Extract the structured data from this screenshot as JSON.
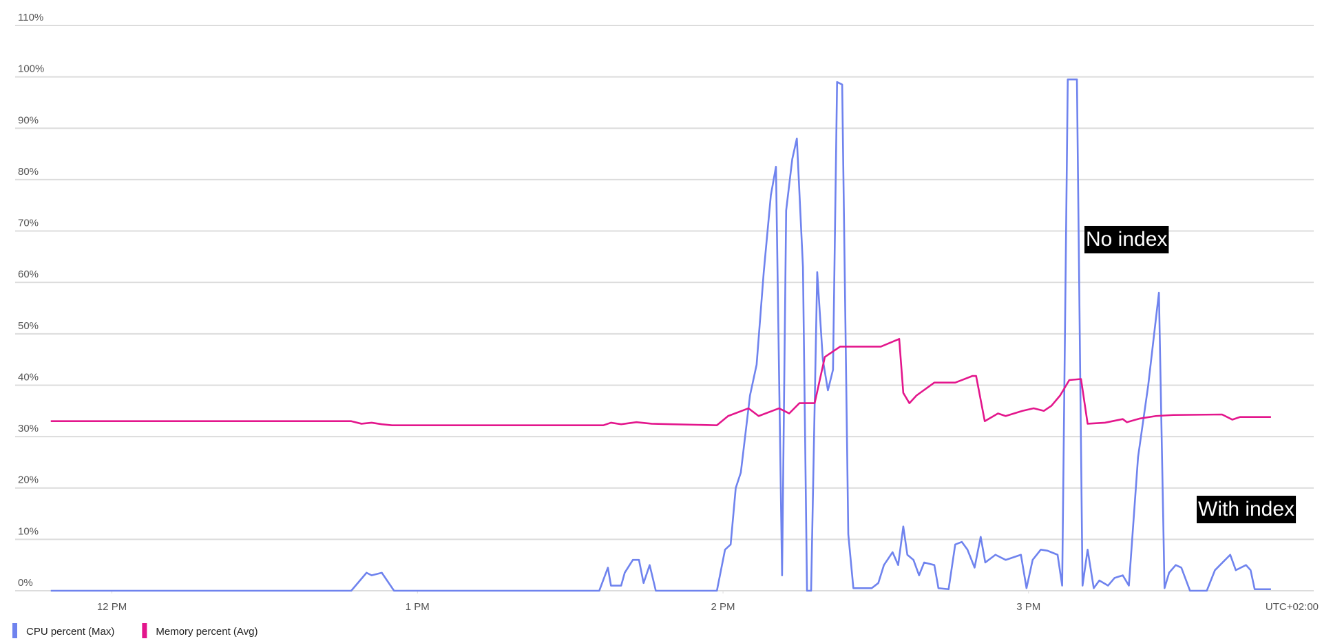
{
  "chart_data": {
    "type": "line",
    "xlim": [
      -19,
      236
    ],
    "xticks": [
      {
        "value": 0,
        "label": "12 PM"
      },
      {
        "value": 60,
        "label": "1 PM"
      },
      {
        "value": 120,
        "label": "2 PM"
      },
      {
        "value": 180,
        "label": "3 PM"
      }
    ],
    "timezone_label": "UTC+02:00",
    "ylim": [
      0,
      110
    ],
    "yticks": [
      {
        "value": 0,
        "label": "0%"
      },
      {
        "value": 10,
        "label": "10%"
      },
      {
        "value": 20,
        "label": "20%"
      },
      {
        "value": 30,
        "label": "30%"
      },
      {
        "value": 40,
        "label": "40%"
      },
      {
        "value": 50,
        "label": "50%"
      },
      {
        "value": 60,
        "label": "60%"
      },
      {
        "value": 70,
        "label": "70%"
      },
      {
        "value": 80,
        "label": "80%"
      },
      {
        "value": 90,
        "label": "90%"
      },
      {
        "value": 100,
        "label": "100%"
      },
      {
        "value": 110,
        "label": "110%"
      }
    ],
    "grid": true,
    "legend": "bottom-left",
    "annotations": [
      "No index",
      "With index"
    ],
    "series": [
      {
        "name": "CPU percent (Max)",
        "color": "#6f83ee",
        "x": [
          -12,
          47,
          50,
          51,
          53,
          55.4,
          95.7,
          97.4,
          98,
          100,
          100.7,
          102.3,
          103.5,
          104.4,
          105.6,
          106.8,
          118.8,
          120.4,
          121.5,
          122.5,
          123.5,
          125.3,
          126.6,
          128,
          129.4,
          130.4,
          131.6,
          132.4,
          133.6,
          134.5,
          135.7,
          136.5,
          137.3,
          138.5,
          139.6,
          140.6,
          141.6,
          142.4,
          143.4,
          144.6,
          145.6,
          149.2,
          150.5,
          151.6,
          153.3,
          154.4,
          155.4,
          156.2,
          157.4,
          158.5,
          159.5,
          161.5,
          162.3,
          164.3,
          165.6,
          166.9,
          168,
          169.4,
          170.6,
          171.5,
          173.5,
          175.5,
          177,
          178.5,
          179.6,
          180.8,
          182.4,
          183.7,
          185.7,
          186.6,
          187.7,
          189.5,
          190.6,
          191.6,
          192.8,
          193.9,
          195.6,
          196.9,
          198.5,
          199.7,
          201.5,
          203.5,
          205.6,
          206.7,
          207.6,
          208.9,
          210,
          211.7,
          215,
          216.6,
          219.6,
          220.7,
          222.7,
          223.6,
          224.4,
          227.6
        ],
        "values": [
          0,
          0,
          3.5,
          3,
          3.5,
          0,
          0,
          4.5,
          1,
          1,
          3.5,
          6,
          6,
          1.5,
          5,
          0,
          0,
          8,
          9,
          20,
          23,
          38,
          44,
          62,
          77,
          82.5,
          3,
          74,
          84,
          88,
          63,
          0,
          0,
          62,
          45,
          39,
          43,
          99,
          98.5,
          11,
          0.5,
          0.5,
          1.5,
          5,
          7.5,
          5,
          12.5,
          7,
          6,
          3,
          5.5,
          5,
          0.5,
          0.3,
          9,
          9.5,
          8,
          4.5,
          10.5,
          5.5,
          7,
          6,
          6.5,
          7,
          0.5,
          6,
          8,
          7.8,
          7,
          1,
          99.5,
          99.5,
          1,
          8,
          0.5,
          2,
          1,
          2.5,
          3,
          1,
          26,
          40,
          58,
          0.5,
          3.5,
          5,
          4.5,
          0,
          0,
          4,
          7,
          4,
          5,
          4,
          0.3,
          0.3
        ]
      },
      {
        "name": "Memory percent (Avg)",
        "color": "#e3168c",
        "x": [
          -12,
          47,
          49,
          51,
          53,
          55,
          96.5,
          98,
          100,
          103,
          106,
          110,
          118.8,
          121,
          125,
          127,
          131,
          133,
          135,
          138,
          140,
          143,
          151,
          154.6,
          155.4,
          156.6,
          158,
          161.5,
          165.6,
          169,
          169.7,
          171.4,
          174,
          175.5,
          178.8,
          181,
          183,
          184.5,
          186.2,
          188,
          190.3,
          191.6,
          195,
          198.5,
          199.3,
          201.8,
          205,
          208.4,
          218,
          220,
          221.5,
          227.6
        ],
        "values": [
          33,
          33,
          32.5,
          32.7,
          32.4,
          32.2,
          32.2,
          32.7,
          32.4,
          32.8,
          32.5,
          32.4,
          32.2,
          34,
          35.5,
          34,
          35.5,
          34.5,
          36.5,
          36.5,
          45.5,
          47.5,
          47.5,
          49,
          38.5,
          36.5,
          38,
          40.5,
          40.5,
          41.8,
          41.8,
          33,
          34.5,
          34,
          35,
          35.5,
          35,
          36,
          38,
          41,
          41.2,
          32.5,
          32.7,
          33.4,
          32.8,
          33.5,
          34,
          34.2,
          34.3,
          33.3,
          33.8,
          33.8
        ]
      }
    ]
  }
}
